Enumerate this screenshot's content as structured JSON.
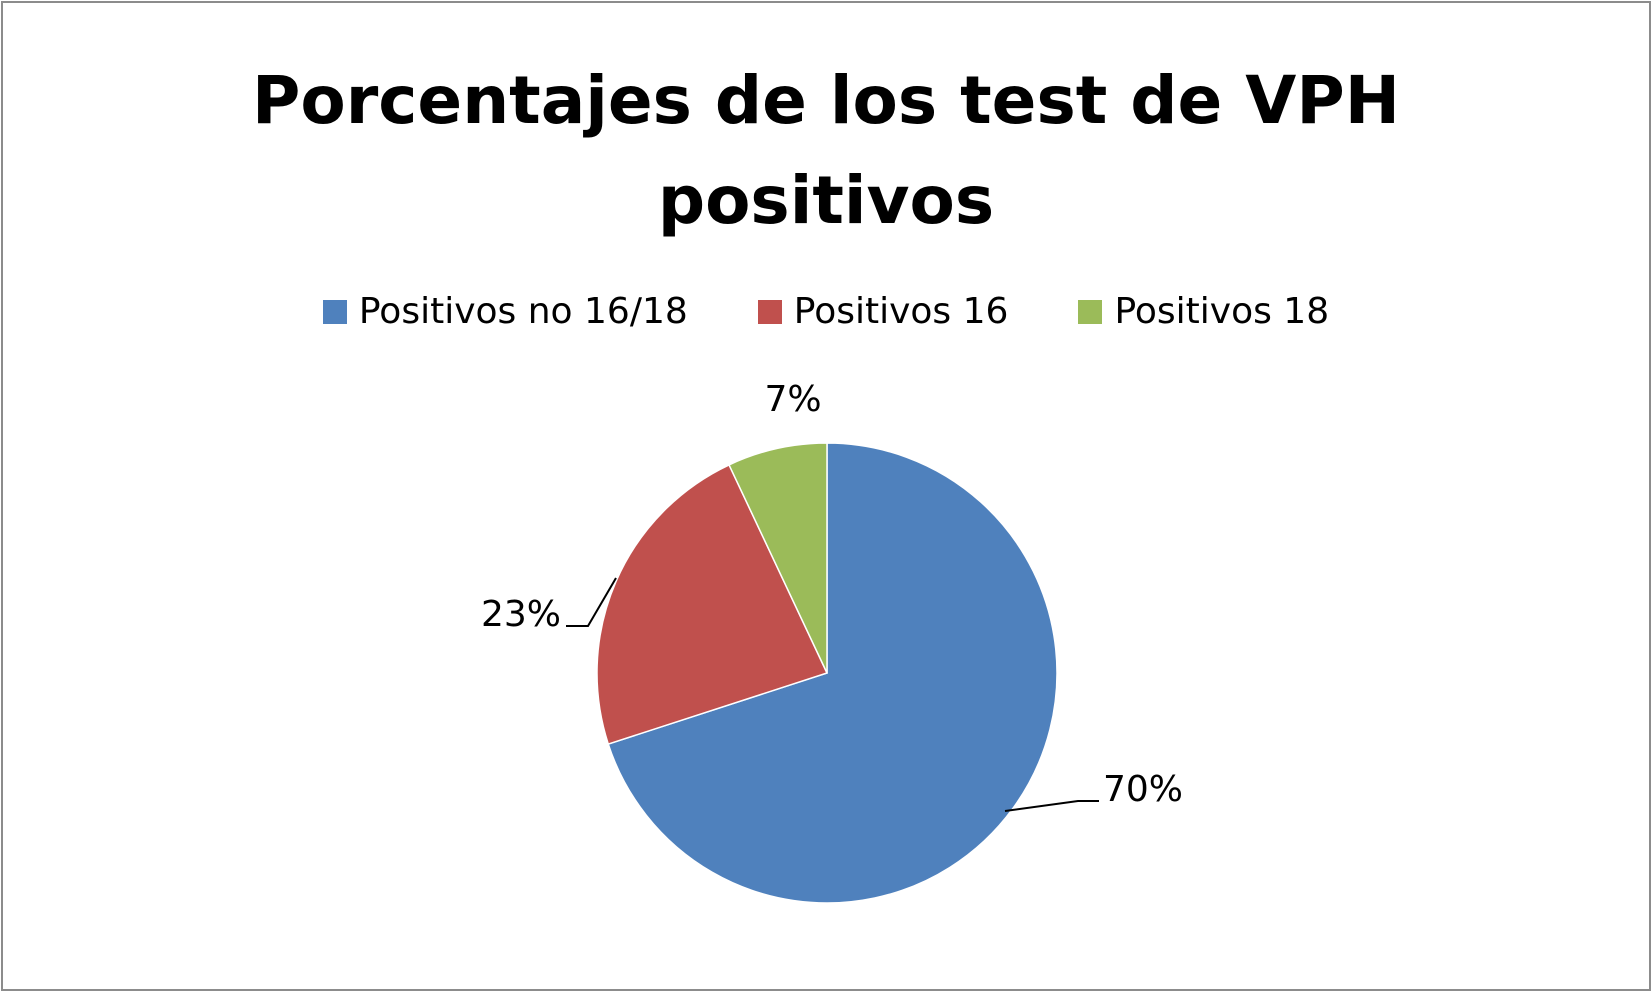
{
  "chart_data": {
    "type": "pie",
    "title": "Porcentajes de los test de VPH positivos",
    "title_lines": [
      "Porcentajes de los test de VPH",
      "positivos"
    ],
    "legend_position": "top",
    "slices": [
      {
        "name": "Positivos no 16/18",
        "value": 70,
        "label": "70%",
        "color": "#4f81bd"
      },
      {
        "name": "Positivos 16",
        "value": 23,
        "label": "23%",
        "color": "#c0504d"
      },
      {
        "name": "Positivos 18",
        "value": 7,
        "label": "7%",
        "color": "#9bbb59"
      }
    ]
  }
}
